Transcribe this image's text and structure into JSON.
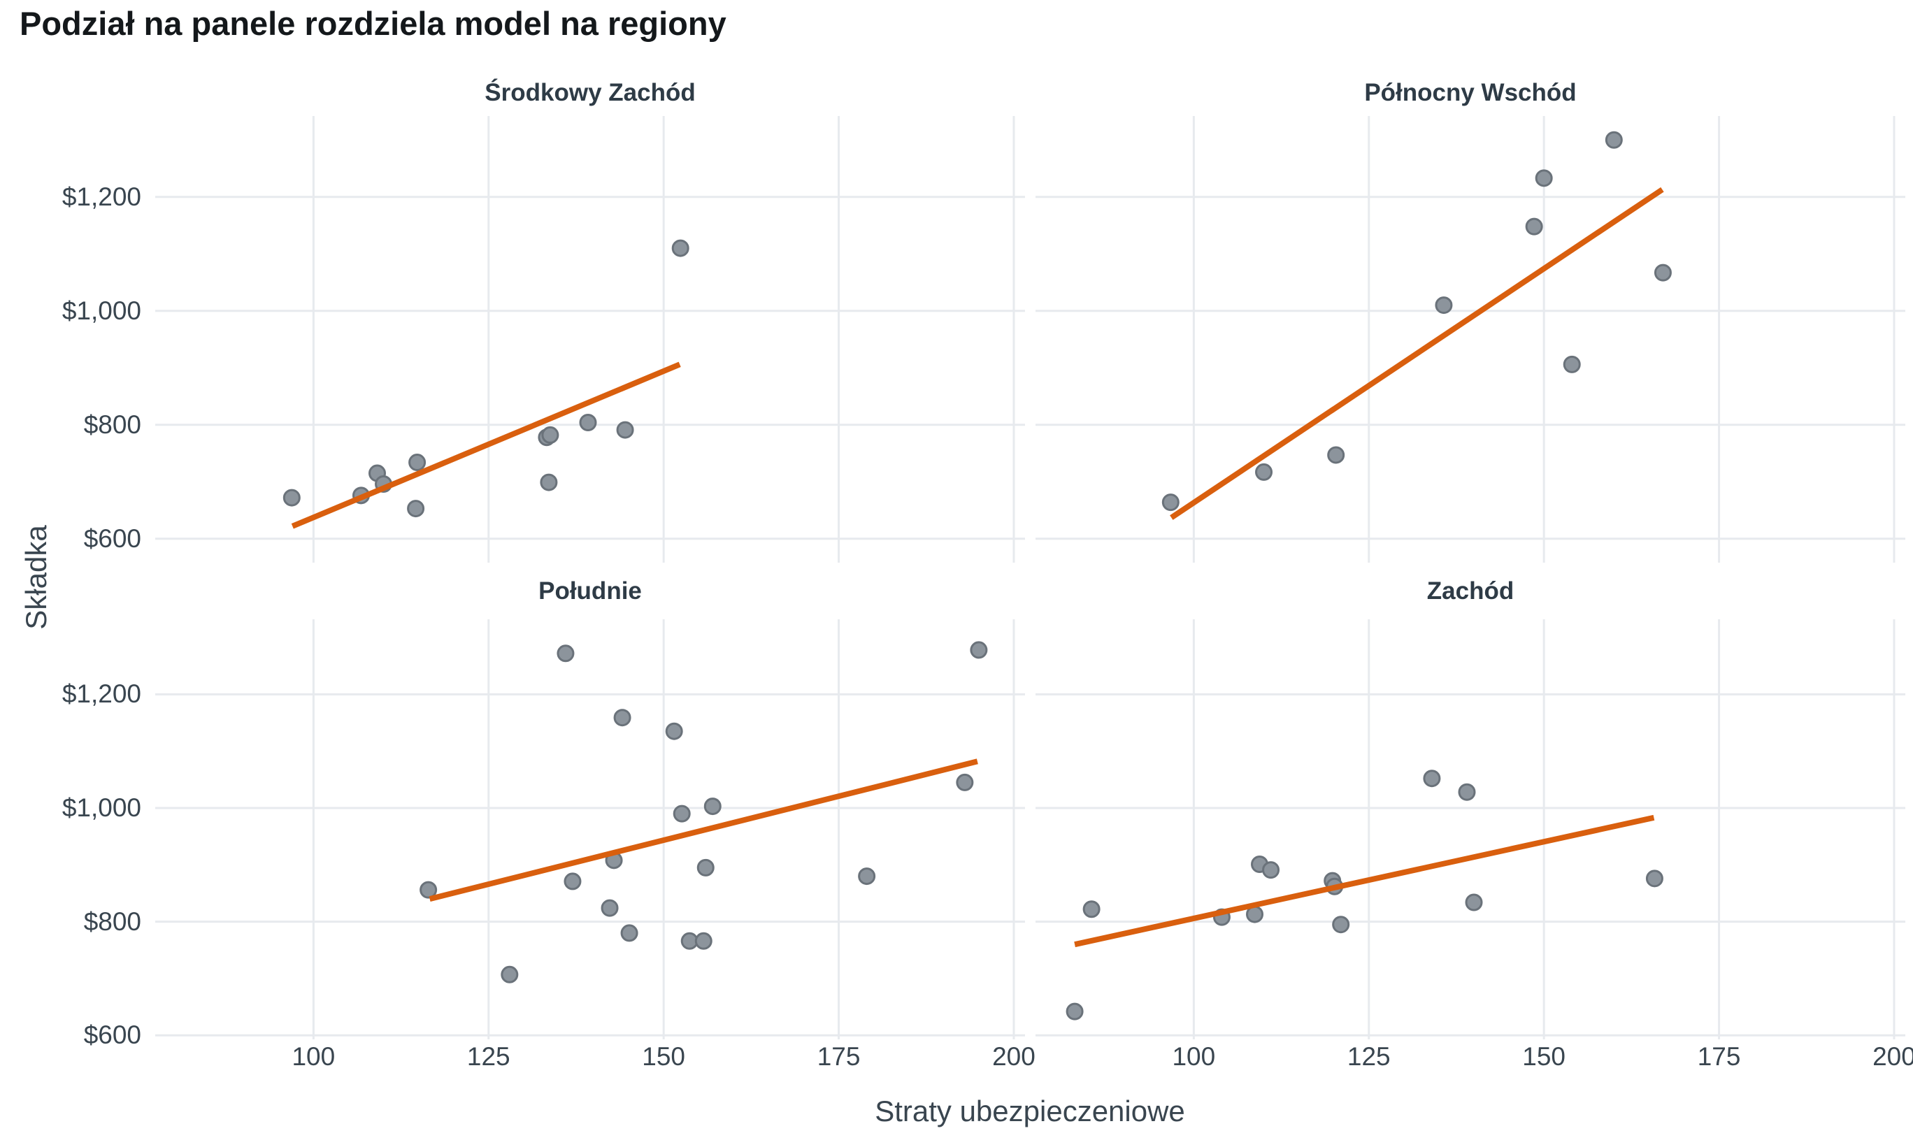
{
  "title": "Podział na panele rozdziela model na regiony",
  "axes": {
    "x_title": "Straty ubezpieczeniowe",
    "y_title": "Składka",
    "x_ticks": [
      {
        "value": 100,
        "label": "100"
      },
      {
        "value": 125,
        "label": "125"
      },
      {
        "value": 150,
        "label": "150"
      },
      {
        "value": 175,
        "label": "175"
      },
      {
        "value": 200,
        "label": "200"
      }
    ],
    "y_ticks": [
      {
        "value": 600,
        "label": "$600"
      },
      {
        "value": 800,
        "label": "$800"
      },
      {
        "value": 1000,
        "label": "$1,000"
      },
      {
        "value": 1200,
        "label": "$1,200"
      }
    ]
  },
  "chart_data": [
    {
      "type": "scatter",
      "title": "Środkowy Zachód",
      "xlabel": "Straty ubezpieczeniowe",
      "ylabel": "Składka",
      "xlim": [
        77.4,
        201.6
      ],
      "ylim": [
        558,
        1342
      ],
      "grid": true,
      "points": [
        [
          96.9,
          672
        ],
        [
          106.8,
          676
        ],
        [
          109.1,
          715
        ],
        [
          110.0,
          696
        ],
        [
          114.6,
          653
        ],
        [
          114.8,
          734
        ],
        [
          133.3,
          778
        ],
        [
          133.8,
          782
        ],
        [
          133.6,
          699
        ],
        [
          139.2,
          804
        ],
        [
          144.5,
          791
        ],
        [
          152.4,
          1110
        ]
      ],
      "trend_line": {
        "x1": 97.0,
        "y1": 622,
        "x2": 152.3,
        "y2": 906
      }
    },
    {
      "type": "scatter",
      "title": "Północny Wschód",
      "xlabel": "Straty ubezpieczeniowe",
      "ylabel": "Składka",
      "xlim": [
        77.4,
        201.6
      ],
      "ylim": [
        558,
        1342
      ],
      "grid": true,
      "points": [
        [
          96.7,
          664
        ],
        [
          110.0,
          717
        ],
        [
          120.3,
          747
        ],
        [
          135.7,
          1010
        ],
        [
          148.6,
          1148
        ],
        [
          150.0,
          1233
        ],
        [
          154.0,
          906
        ],
        [
          160.0,
          1300
        ],
        [
          167.0,
          1067
        ]
      ],
      "trend_line": {
        "x1": 96.8,
        "y1": 637,
        "x2": 166.9,
        "y2": 1213
      }
    },
    {
      "type": "scatter",
      "title": "Południe",
      "xlabel": "Straty ubezpieczeniowe",
      "ylabel": "Składka",
      "xlim": [
        77.4,
        201.6
      ],
      "ylim": [
        593,
        1332
      ],
      "grid": true,
      "points": [
        [
          116.4,
          856
        ],
        [
          128.0,
          707
        ],
        [
          136.0,
          1272
        ],
        [
          137.0,
          871
        ],
        [
          142.3,
          824
        ],
        [
          142.9,
          908
        ],
        [
          144.1,
          1159
        ],
        [
          145.1,
          780
        ],
        [
          151.5,
          1135
        ],
        [
          152.6,
          990
        ],
        [
          153.7,
          766
        ],
        [
          155.7,
          766
        ],
        [
          156.0,
          895
        ],
        [
          157.0,
          1003
        ],
        [
          179.0,
          880
        ],
        [
          193.0,
          1045
        ],
        [
          195.0,
          1278
        ]
      ],
      "trend_line": {
        "x1": 116.6,
        "y1": 840,
        "x2": 194.8,
        "y2": 1082
      }
    },
    {
      "type": "scatter",
      "title": "Zachód",
      "xlabel": "Straty ubezpieczeniowe",
      "ylabel": "Składka",
      "xlim": [
        77.4,
        201.6
      ],
      "ylim": [
        593,
        1332
      ],
      "grid": true,
      "points": [
        [
          83.0,
          642
        ],
        [
          85.4,
          822
        ],
        [
          104.0,
          808
        ],
        [
          108.7,
          813
        ],
        [
          109.4,
          901
        ],
        [
          111.0,
          891
        ],
        [
          119.8,
          872
        ],
        [
          120.1,
          862
        ],
        [
          121.0,
          795
        ],
        [
          134.0,
          1052
        ],
        [
          139.0,
          1028
        ],
        [
          140.0,
          834
        ],
        [
          165.8,
          876
        ]
      ],
      "trend_line": {
        "x1": 83.0,
        "y1": 760,
        "x2": 165.7,
        "y2": 983
      }
    }
  ],
  "style": {
    "background": "#ffffff",
    "grid_color": "#e7eaee",
    "point_fill": "#8c949c",
    "point_stroke": "#6a727a",
    "trend_color": "#d95f0e",
    "tick_text_color": "#39454f",
    "strip_text_color": "#2e3b46",
    "title_color": "#14181b"
  }
}
